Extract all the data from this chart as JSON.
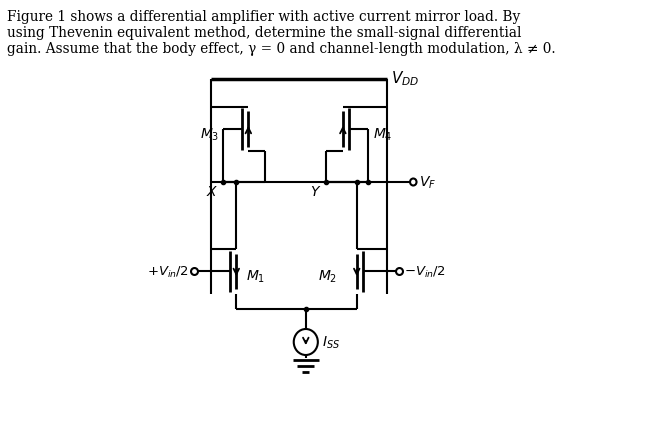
{
  "bg_color": "#ffffff",
  "line_color": "#000000",
  "figsize": [
    6.54,
    4.35
  ],
  "dpi": 100,
  "text_lines": [
    "Figure 1 shows a differential amplifier with active current mirror load. By",
    "using Thevenin equivalent method, determine the small-signal differential",
    "gain. Assume that the body effect, γ = 0 and channel-length modulation, λ ≠ 0."
  ]
}
